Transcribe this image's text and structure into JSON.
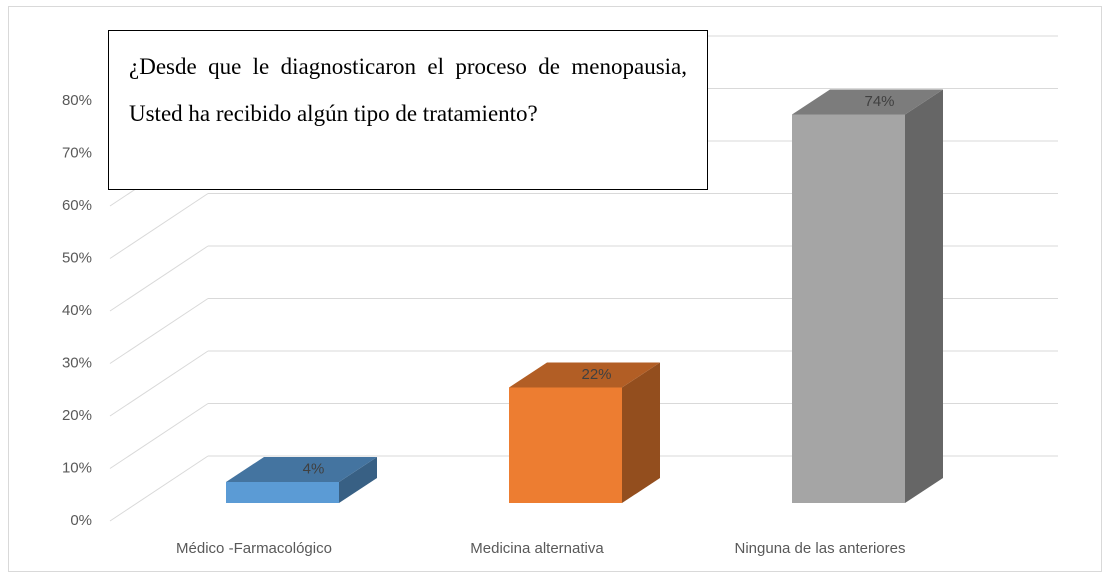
{
  "chart_data": {
    "type": "bar3d",
    "title": "¿Desde que le diagnosticaron el proceso de menopausia, Usted ha recibido algún tipo de tratamiento?",
    "categories": [
      "Médico -Farmacológico",
      "Medicina alternativa",
      "Ninguna de las anteriores"
    ],
    "values": [
      4,
      22,
      74
    ],
    "value_labels": [
      "4%",
      "22%",
      "74%"
    ],
    "colors": [
      "#5b9bd5",
      "#ed7d31",
      "#a5a5a5"
    ],
    "ylim": [
      0,
      80
    ],
    "yticks": [
      {
        "value": 0,
        "label": "0%"
      },
      {
        "value": 10,
        "label": "10%"
      },
      {
        "value": 20,
        "label": "20%"
      },
      {
        "value": 30,
        "label": "30%"
      },
      {
        "value": 40,
        "label": "40%"
      },
      {
        "value": 50,
        "label": "50%"
      },
      {
        "value": 60,
        "label": "60%"
      },
      {
        "value": 70,
        "label": "70%"
      },
      {
        "value": 80,
        "label": "80%"
      }
    ],
    "grid": true
  }
}
